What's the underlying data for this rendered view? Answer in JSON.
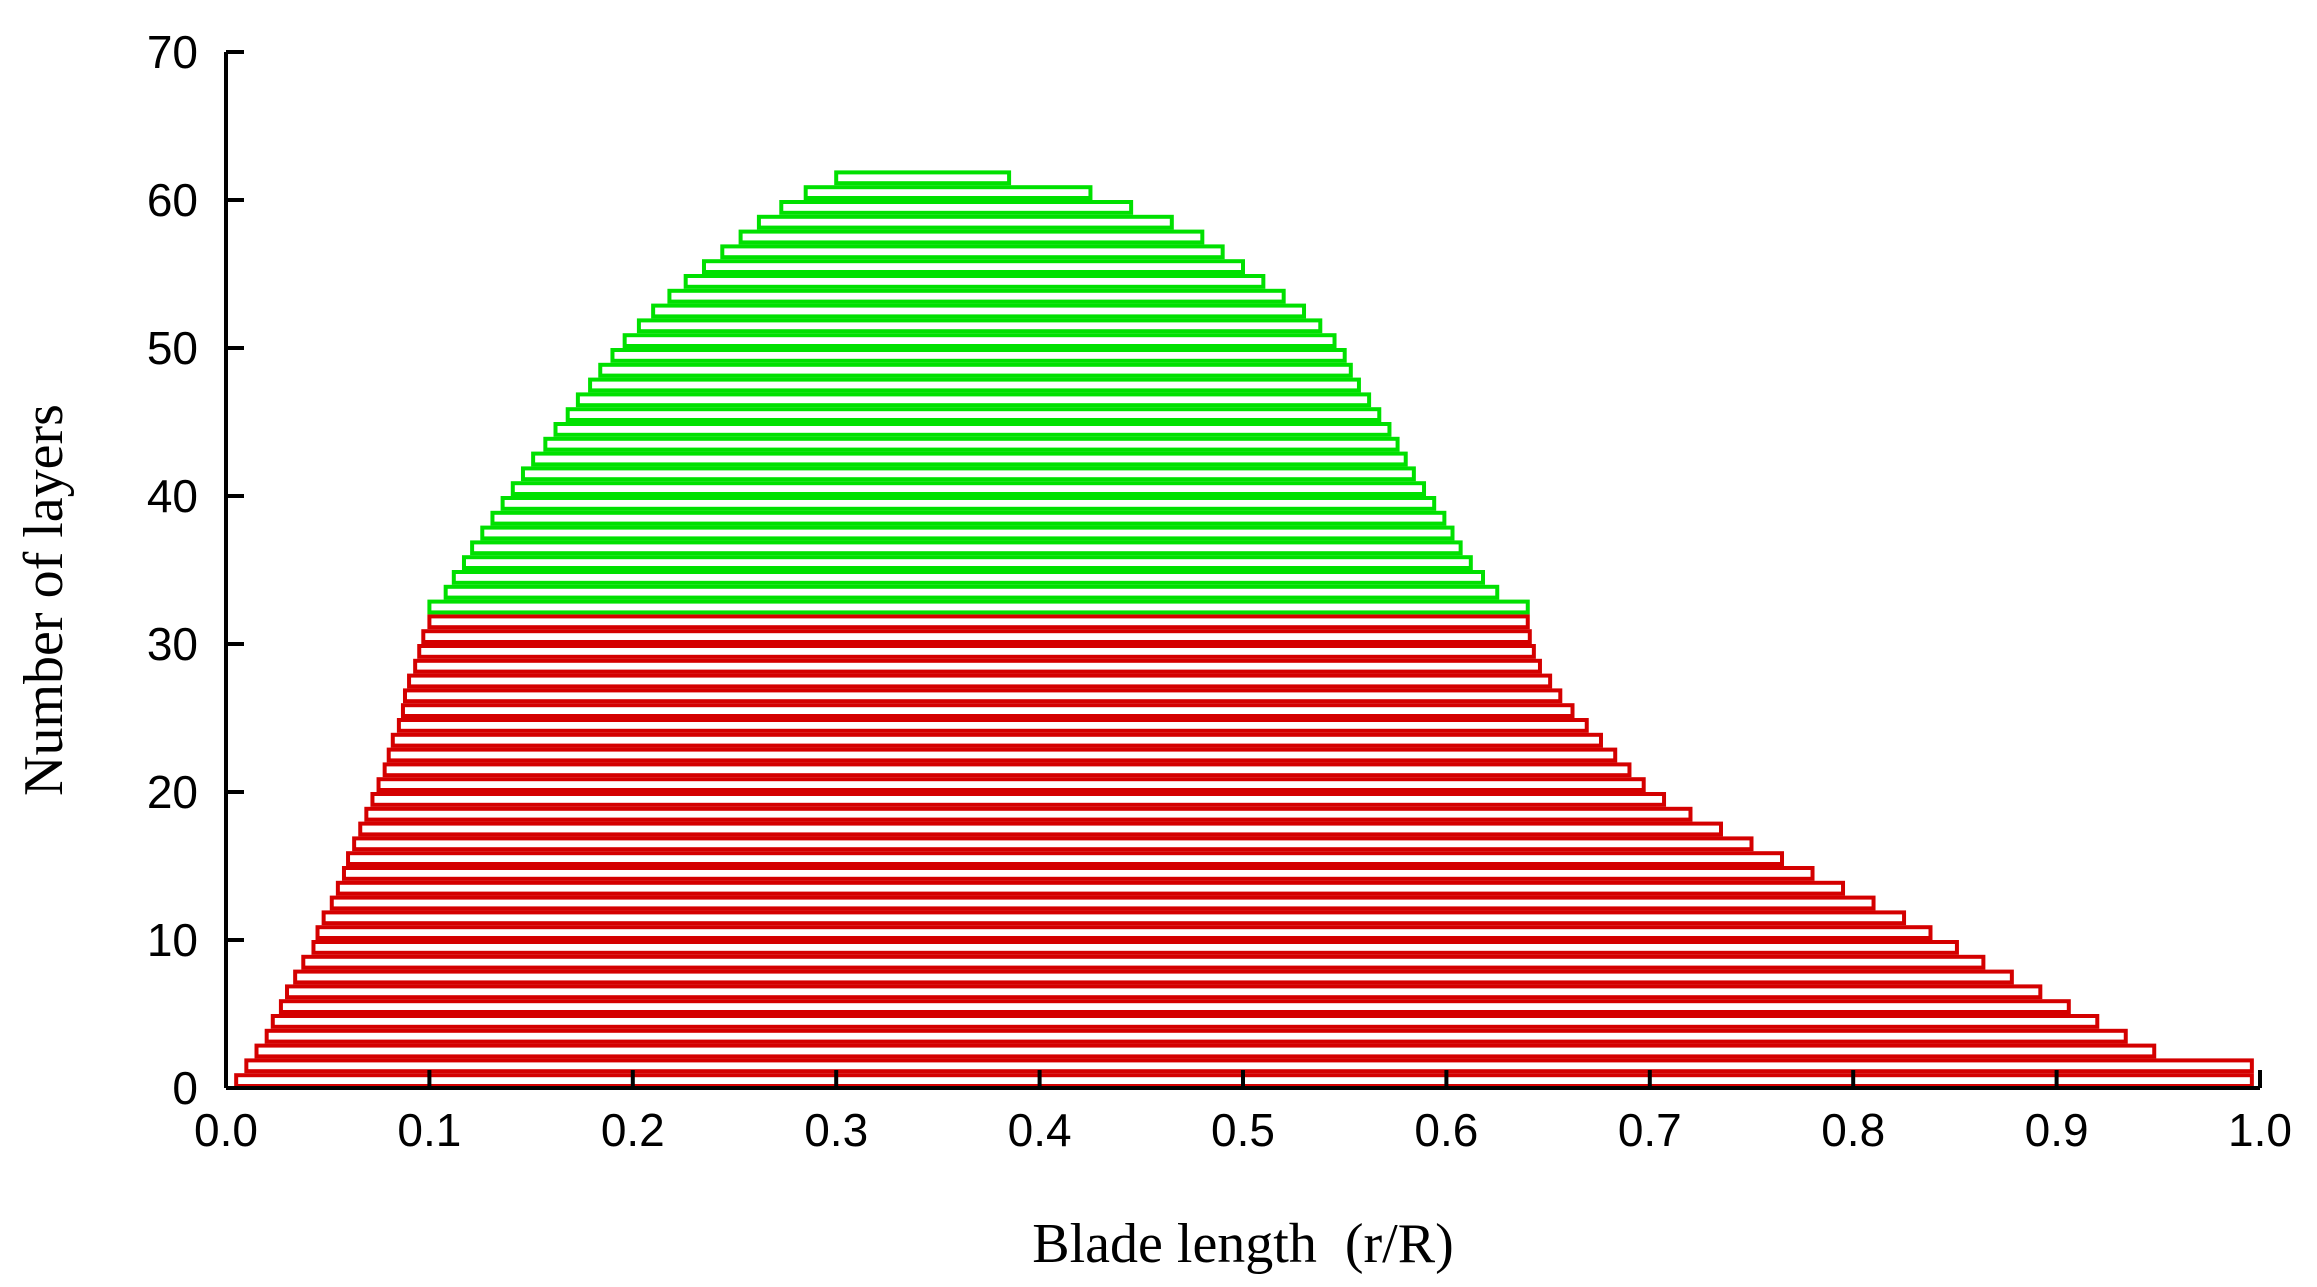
{
  "chart_data": {
    "type": "bar",
    "orientation": "horizontal-stacked-layers",
    "xlabel": "Blade length  (r/R)",
    "ylabel": "Number of layers",
    "xlim": [
      0.0,
      1.0
    ],
    "ylim": [
      0,
      70
    ],
    "x_ticks": [
      "0.0",
      "0.1",
      "0.2",
      "0.3",
      "0.4",
      "0.5",
      "0.6",
      "0.7",
      "0.8",
      "0.9",
      "1.0"
    ],
    "y_ticks": [
      "0",
      "10",
      "20",
      "30",
      "40",
      "50",
      "60",
      "70"
    ],
    "grid": false,
    "legend": "none",
    "colors": {
      "lower_layers": "#d40000",
      "upper_layers": "#00e000",
      "outline": "#3a9a2a"
    },
    "series": [
      {
        "layer_range": [
          1,
          32
        ],
        "color": "#d40000",
        "x_start": [
          0.005,
          0.01,
          0.015,
          0.02,
          0.023,
          0.027,
          0.03,
          0.034,
          0.038,
          0.043,
          0.045,
          0.048,
          0.052,
          0.055,
          0.058,
          0.06,
          0.063,
          0.066,
          0.069,
          0.072,
          0.075,
          0.078,
          0.08,
          0.082,
          0.085,
          0.087,
          0.088,
          0.09,
          0.093,
          0.095,
          0.097,
          0.1
        ],
        "x_end": [
          0.996,
          0.996,
          0.948,
          0.934,
          0.92,
          0.906,
          0.892,
          0.878,
          0.864,
          0.851,
          0.838,
          0.825,
          0.81,
          0.795,
          0.78,
          0.765,
          0.75,
          0.735,
          0.72,
          0.707,
          0.697,
          0.69,
          0.683,
          0.676,
          0.669,
          0.662,
          0.656,
          0.651,
          0.646,
          0.643,
          0.641,
          0.64
        ]
      },
      {
        "layer_range": [
          33,
          62
        ],
        "color": "#00e000",
        "x_start": [
          0.1,
          0.108,
          0.112,
          0.117,
          0.121,
          0.126,
          0.131,
          0.136,
          0.141,
          0.146,
          0.151,
          0.157,
          0.162,
          0.168,
          0.173,
          0.179,
          0.184,
          0.19,
          0.196,
          0.203,
          0.21,
          0.218,
          0.226,
          0.235,
          0.244,
          0.253,
          0.262,
          0.273,
          0.285,
          0.3
        ],
        "x_end": [
          0.64,
          0.625,
          0.618,
          0.612,
          0.607,
          0.603,
          0.599,
          0.594,
          0.589,
          0.584,
          0.58,
          0.576,
          0.572,
          0.567,
          0.562,
          0.557,
          0.553,
          0.55,
          0.545,
          0.538,
          0.53,
          0.52,
          0.51,
          0.5,
          0.49,
          0.48,
          0.465,
          0.445,
          0.425,
          0.385
        ]
      }
    ]
  }
}
